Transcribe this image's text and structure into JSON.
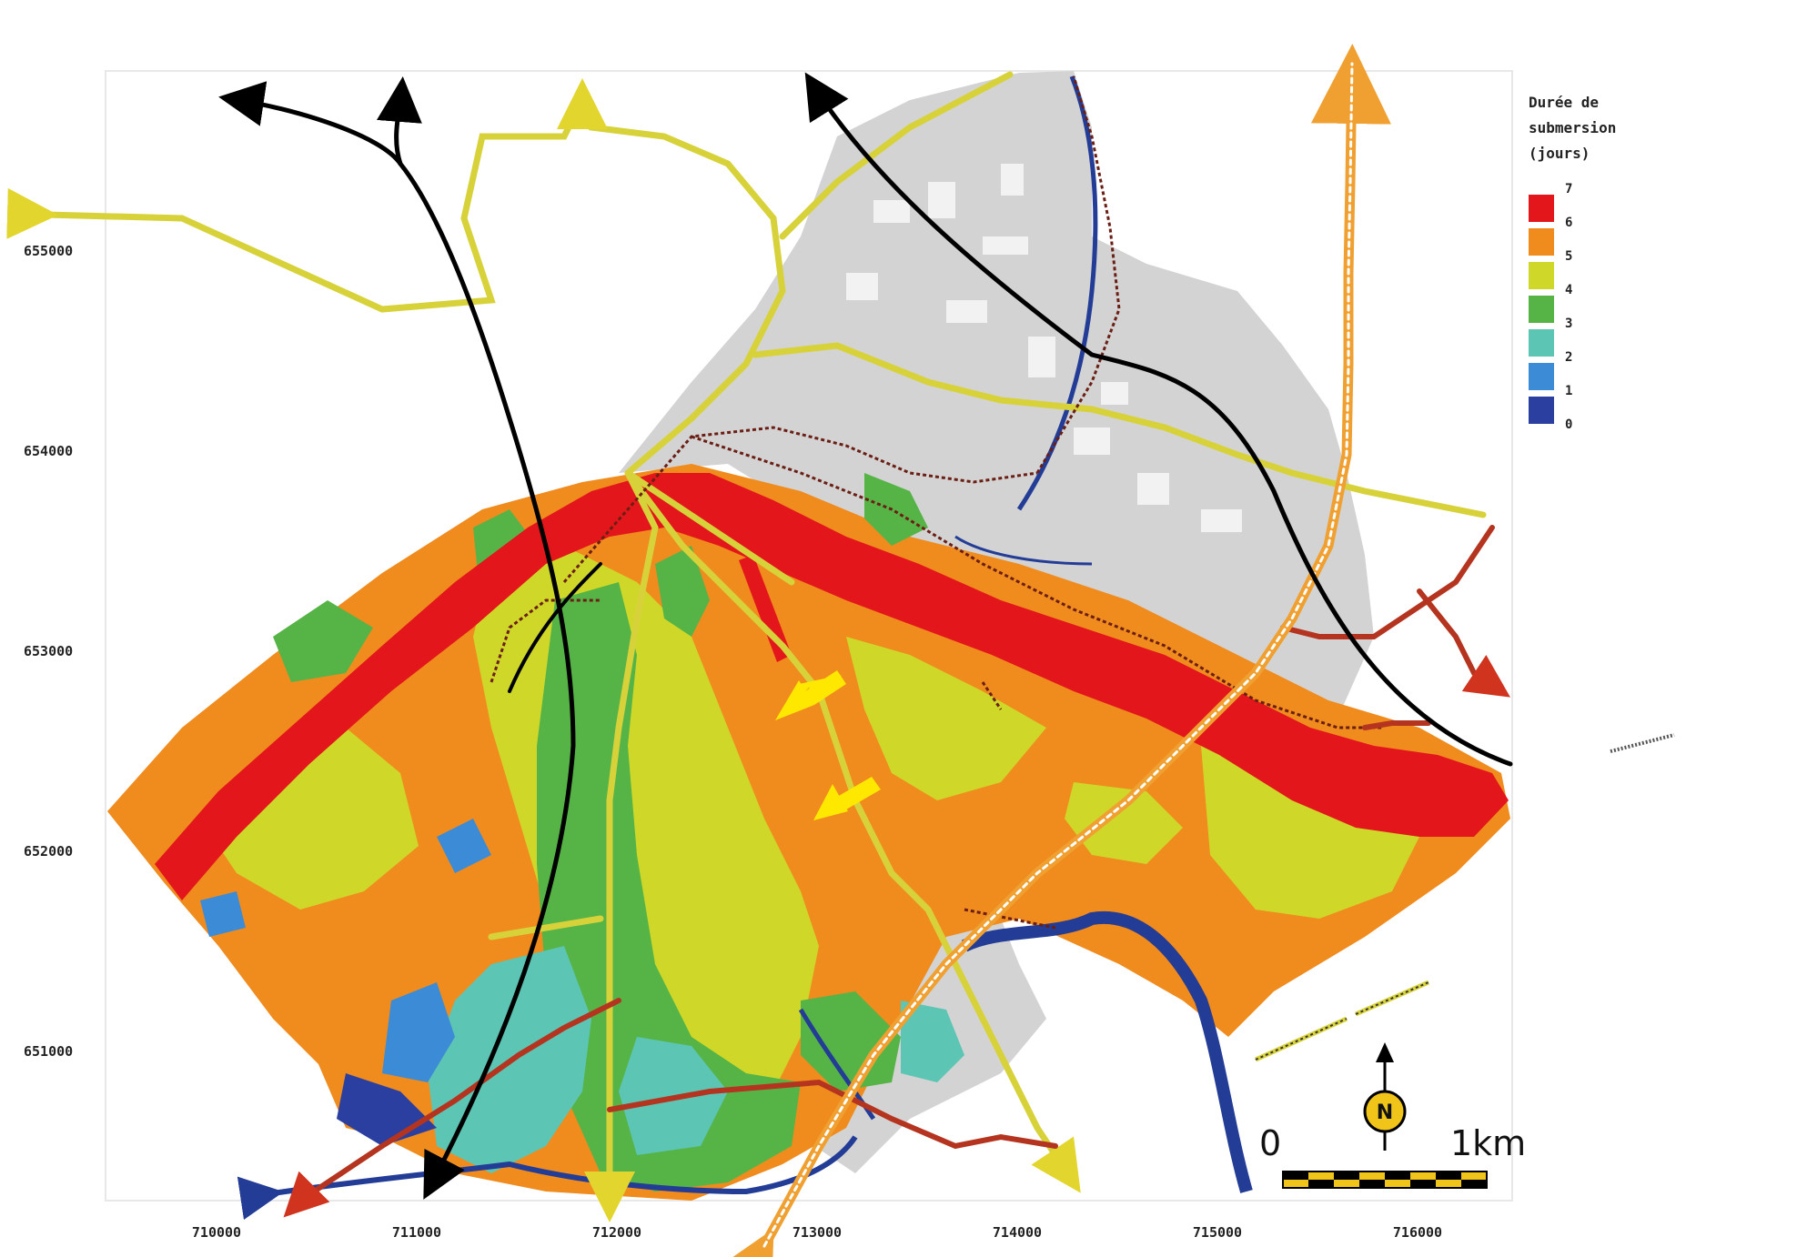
{
  "legend": {
    "title_lines": [
      "Durée de",
      "submersion",
      "(jours)"
    ],
    "labels": [
      "7",
      "6",
      "5",
      "4",
      "3",
      "2",
      "1",
      "0"
    ],
    "colors": [
      "#e3161b",
      "#f08b1e",
      "#cfd829",
      "#56b447",
      "#5cc5b4",
      "#3c8bd6",
      "#2a3fa0"
    ]
  },
  "axes": {
    "x_ticks": [
      "710000",
      "711000",
      "712000",
      "713000",
      "714000",
      "715000",
      "716000"
    ],
    "y_ticks": [
      "655000",
      "654000",
      "653000",
      "652000",
      "651000"
    ]
  },
  "scale_bar": {
    "start_label": "0",
    "end_label": "1km"
  },
  "north_arrow": {
    "label": "N"
  },
  "colors": {
    "urban": "#d3d3d3",
    "river": "#e3161b",
    "road_yellow": "#d8d23a",
    "road_brown": "#b4341f",
    "waterway_blue": "#233c96",
    "flow_arrow": "#000000",
    "indicator_arrow": "#ffe800"
  }
}
